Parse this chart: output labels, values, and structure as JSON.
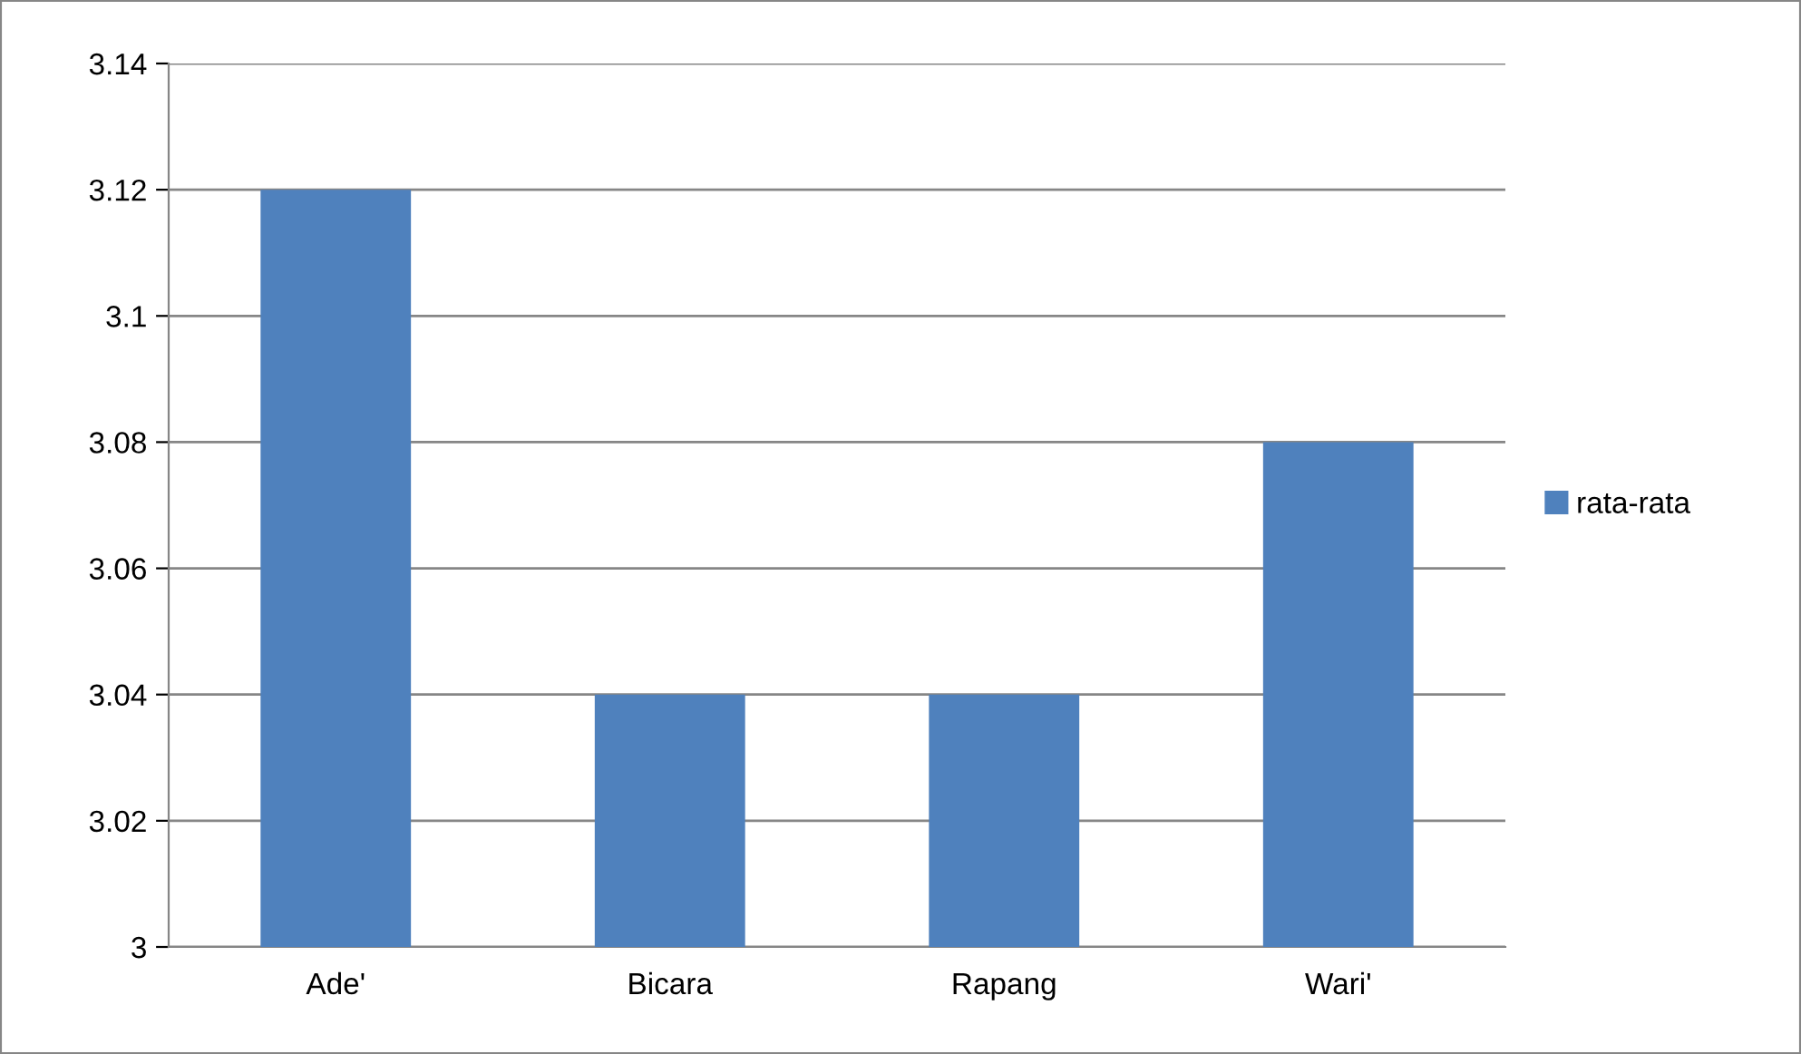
{
  "chart_data": {
    "type": "bar",
    "categories": [
      "Ade'",
      "Bicara",
      "Rapang",
      "Wari'"
    ],
    "series": [
      {
        "name": "rata-rata",
        "color": "#4f81bd",
        "values": [
          3.12,
          3.04,
          3.04,
          3.08
        ]
      }
    ],
    "ylim": [
      3,
      3.14
    ],
    "yticks": [
      3,
      3.02,
      3.04,
      3.06,
      3.08,
      3.1,
      3.12,
      3.14
    ],
    "grid": "y",
    "legend": "right"
  }
}
